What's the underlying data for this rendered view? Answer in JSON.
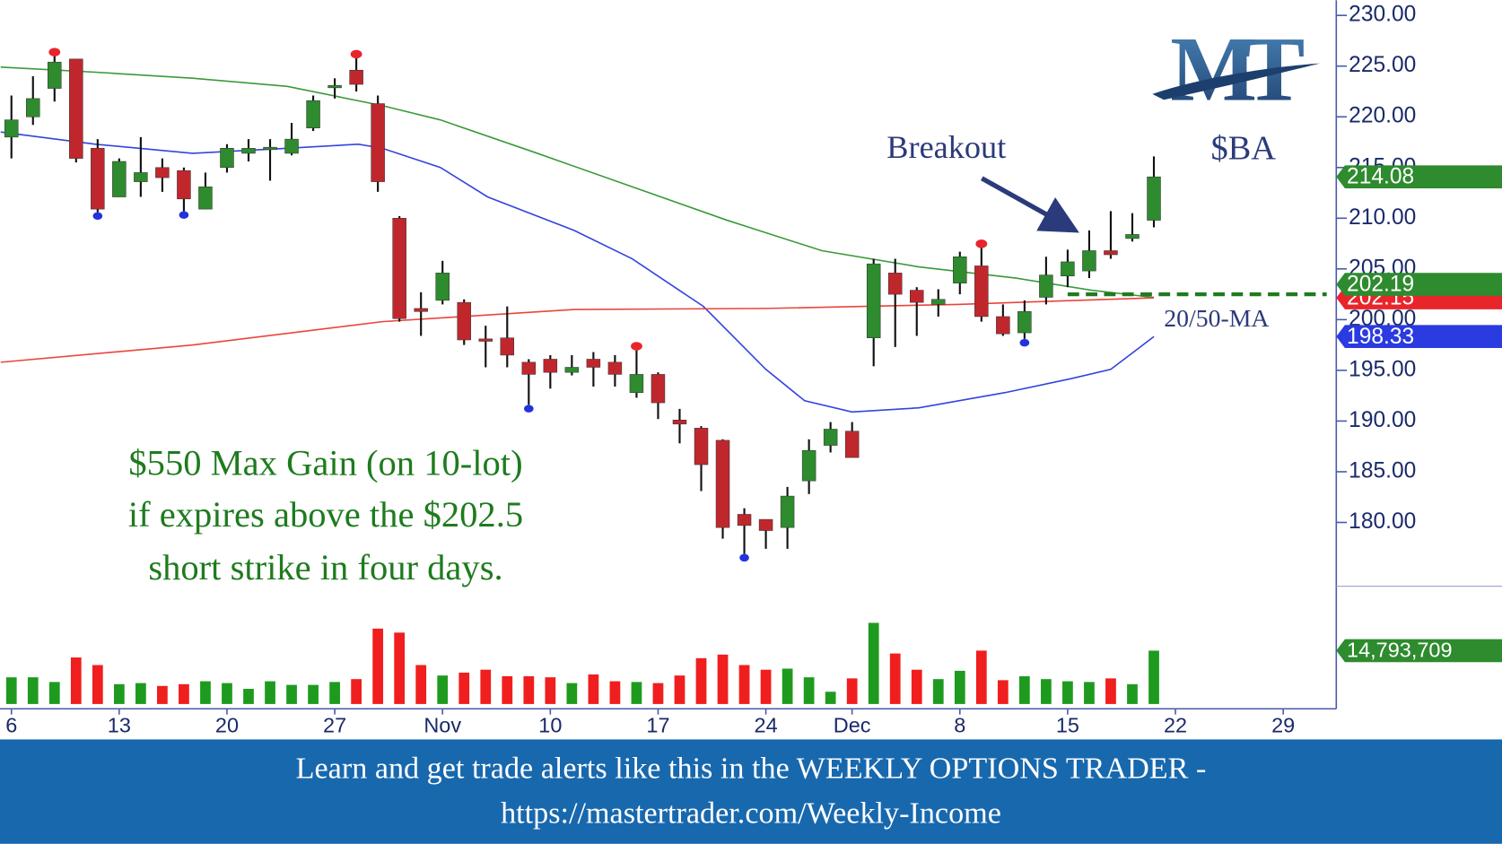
{
  "chart_data": {
    "type": "candlestick",
    "symbol": "$BA",
    "logo": "MT",
    "up_color": "#2e8b2e",
    "down_color": "#c0272d",
    "x": [
      0,
      1,
      2,
      3,
      4,
      5,
      6,
      7,
      8,
      9,
      10,
      11,
      12,
      13,
      14,
      15,
      16,
      17,
      18,
      19,
      20,
      21,
      22,
      23,
      24,
      25,
      26,
      27,
      28,
      29,
      30,
      31,
      32,
      33,
      34,
      35,
      36,
      37,
      38,
      39,
      40,
      41,
      42,
      43,
      44,
      45,
      46,
      47,
      48,
      49,
      50,
      51,
      52,
      53
    ],
    "open": [
      218.0,
      220.0,
      222.8,
      225.7,
      216.9,
      212.1,
      213.6,
      215.0,
      214.7,
      210.9,
      215.0,
      216.4,
      216.9,
      216.4,
      218.9,
      223.0,
      224.6,
      221.3,
      210.0,
      201.1,
      201.9,
      201.7,
      198.1,
      198.2,
      195.8,
      196.1,
      194.8,
      196.1,
      195.8,
      192.8,
      194.6,
      190.1,
      189.3,
      188.1,
      180.8,
      180.3,
      179.5,
      184.1,
      187.6,
      189.0,
      198.2,
      204.6,
      202.9,
      201.5,
      203.6,
      205.3,
      200.3,
      198.7,
      202.2,
      204.3,
      204.8,
      206.8,
      208.0,
      209.8
    ],
    "high": [
      222.1,
      224.0,
      226.0,
      225.7,
      217.8,
      215.9,
      218.0,
      215.9,
      215.0,
      214.5,
      217.3,
      217.8,
      217.8,
      219.4,
      222.1,
      223.8,
      225.8,
      222.1,
      210.2,
      202.7,
      205.8,
      202.0,
      199.4,
      201.3,
      196.1,
      196.5,
      196.5,
      196.8,
      196.5,
      197.0,
      194.8,
      191.2,
      189.5,
      188.2,
      181.4,
      180.3,
      183.5,
      188.2,
      189.9,
      189.9,
      206.0,
      206.0,
      203.2,
      203.0,
      206.7,
      207.1,
      201.5,
      201.9,
      206.2,
      206.9,
      208.8,
      210.7,
      210.5,
      216.1
    ],
    "low": [
      215.9,
      219.2,
      221.5,
      215.5,
      210.6,
      212.1,
      212.1,
      212.6,
      210.7,
      210.9,
      214.5,
      215.6,
      213.7,
      216.2,
      218.6,
      221.8,
      222.5,
      212.6,
      199.8,
      198.4,
      201.5,
      197.5,
      195.3,
      195.3,
      191.6,
      193.2,
      194.5,
      193.4,
      193.4,
      192.3,
      190.2,
      187.8,
      183.1,
      178.4,
      176.9,
      177.4,
      177.4,
      182.8,
      186.9,
      186.4,
      195.4,
      197.3,
      198.4,
      200.3,
      202.5,
      199.8,
      198.4,
      198.1,
      201.5,
      203.2,
      204.1,
      206.0,
      207.7,
      209.1
    ],
    "close": [
      219.7,
      221.8,
      225.4,
      215.9,
      210.9,
      215.6,
      214.5,
      214.0,
      211.9,
      213.1,
      216.9,
      216.9,
      217.0,
      217.8,
      221.6,
      223.1,
      223.2,
      213.6,
      200.1,
      200.8,
      204.6,
      198.0,
      197.9,
      196.5,
      194.6,
      194.8,
      195.3,
      195.3,
      194.6,
      194.6,
      191.8,
      189.7,
      185.7,
      179.5,
      179.7,
      179.2,
      182.6,
      187.1,
      189.2,
      186.4,
      205.5,
      202.5,
      201.7,
      202.0,
      206.2,
      200.3,
      198.6,
      200.8,
      204.4,
      205.7,
      206.8,
      206.4,
      208.4,
      214.08
    ],
    "volume": [
      7400000,
      7400000,
      6100000,
      12900000,
      10800000,
      5500000,
      5800000,
      5000000,
      5500000,
      6300000,
      5800000,
      4200000,
      6300000,
      5300000,
      5300000,
      6100000,
      6900000,
      20900000,
      19800000,
      10800000,
      7900000,
      8700000,
      9500000,
      7700000,
      7700000,
      7400000,
      5800000,
      8200000,
      6300000,
      6100000,
      5800000,
      7900000,
      12700000,
      13700000,
      10800000,
      9500000,
      9800000,
      7400000,
      3400000,
      7100000,
      22500000,
      14000000,
      9500000,
      6900000,
      9200000,
      14800000,
      6600000,
      7700000,
      6900000,
      6300000,
      6100000,
      7100000,
      5500000,
      14793709
    ],
    "high_markers": [
      2,
      16,
      29,
      45
    ],
    "low_markers": [
      4,
      8,
      24,
      34,
      47
    ],
    "marker_high_color": "#e8252b",
    "marker_low_color": "#2233dd",
    "series": [
      {
        "color": "#3a9a3a",
        "x": [
          -0.5,
          3.9,
          8.4,
          12.8,
          17.2,
          19.9,
          24.4,
          28.8,
          33.2,
          37.6,
          42.1,
          46.6,
          50.1,
          53
        ],
        "values": [
          224.9,
          224.4,
          223.8,
          223.0,
          221.1,
          219.7,
          216.4,
          213.1,
          209.8,
          206.8,
          205.2,
          204.1,
          202.9,
          202.19
        ]
      },
      {
        "color": "#3344dd",
        "x": [
          -0.5,
          3.9,
          8.4,
          12.8,
          16.1,
          17.2,
          19.9,
          22.1,
          26.1,
          28.8,
          32.1,
          35.0,
          36.8,
          39.0,
          42.1,
          46.1,
          49.2,
          51.0,
          53
        ],
        "values": [
          218.5,
          217.3,
          216.4,
          216.9,
          217.3,
          216.9,
          215.0,
          212.1,
          208.8,
          206.0,
          201.3,
          195.1,
          192.0,
          190.9,
          191.3,
          192.8,
          194.2,
          195.1,
          198.33
        ]
      },
      {
        "color": "#e8453c",
        "x": [
          -0.5,
          8.4,
          17.2,
          26.1,
          35.0,
          43.9,
          53
        ],
        "values": [
          195.8,
          197.5,
          199.8,
          201.0,
          201.1,
          201.5,
          202.15
        ]
      }
    ],
    "price_tags": [
      {
        "value": 214.08,
        "color": "#2e8b2e"
      },
      {
        "value": 202.15,
        "color": "#e8252b"
      },
      {
        "value": 202.19,
        "color": "#2e8b2e"
      },
      {
        "value": 198.33,
        "color": "#2a3be0"
      }
    ],
    "volume_tag": {
      "value": 14793709,
      "label": "14,793,709",
      "color": "#2e8b2e"
    },
    "strike_line": {
      "value": 202.5,
      "x_start": 49,
      "color": "#1e7b1e"
    },
    "xlim": [
      -0.53,
      61.24
    ],
    "ylim": [
      173.9,
      231.5
    ],
    "volume_ylim": [
      0,
      30000000
    ],
    "xticks": [
      {
        "value": 0,
        "label": "6"
      },
      {
        "value": 5,
        "label": "13"
      },
      {
        "value": 10,
        "label": "20"
      },
      {
        "value": 15,
        "label": "27"
      },
      {
        "value": 20,
        "label": "Nov"
      },
      {
        "value": 25,
        "label": "10"
      },
      {
        "value": 30,
        "label": "17"
      },
      {
        "value": 35,
        "label": "24"
      },
      {
        "value": 39,
        "label": "Dec"
      },
      {
        "value": 44,
        "label": "8"
      },
      {
        "value": 49,
        "label": "15"
      },
      {
        "value": 54,
        "label": "22"
      },
      {
        "value": 59,
        "label": "29"
      }
    ],
    "yticks": [
      {
        "value": 180,
        "label": "180.00"
      },
      {
        "value": 185,
        "label": "185.00"
      },
      {
        "value": 190,
        "label": "190.00"
      },
      {
        "value": 195,
        "label": "195.00"
      },
      {
        "value": 200,
        "label": "200.00"
      },
      {
        "value": 205,
        "label": "205.00"
      },
      {
        "value": 210,
        "label": "210.00"
      },
      {
        "value": 215,
        "label": "215.00"
      },
      {
        "value": 220,
        "label": "220.00"
      },
      {
        "value": 225,
        "label": "225.00"
      },
      {
        "value": 230,
        "label": "230.00"
      }
    ],
    "annotations": {
      "breakout": "Breakout",
      "ma_label": "20/50-MA",
      "trade_note": [
        "$550 Max Gain (on 10-lot)",
        "if expires above the $202.5",
        "short strike in four days."
      ]
    },
    "banner": [
      "Learn and get trade alerts like this in the WEEKLY OPTIONS TRADER -",
      "https://mastertrader.com/Weekly-Income"
    ]
  }
}
